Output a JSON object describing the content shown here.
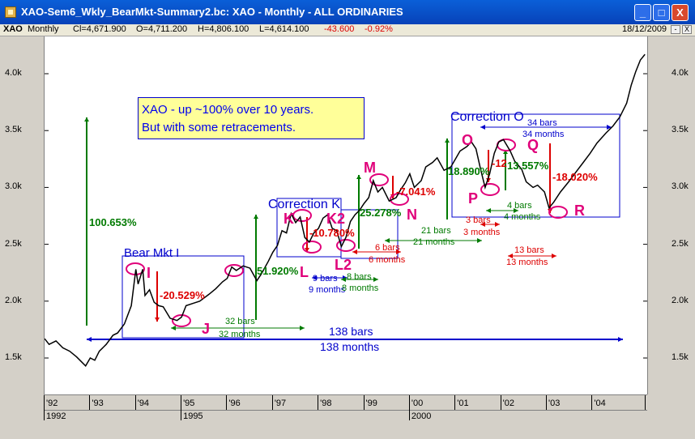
{
  "window": {
    "title": "XAO-Sem6_Wkly_BearMkt-Summary2.bc: XAO - Monthly - ALL ORDINARIES",
    "minimize": "_",
    "maximize": "□",
    "close": "X"
  },
  "info": {
    "symbol": "XAO",
    "period": "Monthly",
    "close": "Cl=4,671.900",
    "open": "O=4,711.200",
    "high": "H=4,806.100",
    "low": "L=4,614.100",
    "change": "-43.600",
    "change_pct": "-0.92%",
    "date": "18/12/2009",
    "btn1": "-",
    "btn2": "X"
  },
  "note": {
    "line1": "XAO - up ~100% over 10 years.",
    "line2": "But with some retracements."
  },
  "colors": {
    "price": "#000000",
    "green": "#007a00",
    "red": "#dd0000",
    "blue": "#0000cc",
    "magenta": "#e0007a"
  },
  "chart_data": {
    "type": "line",
    "title": "",
    "y_ticks": [
      "4.0k",
      "3.5k",
      "3.0k",
      "2.5k",
      "2.0k",
      "1.5k"
    ],
    "x_ticks": [
      "'92",
      "'93",
      "'94",
      "'95",
      "'96",
      "'97",
      "'98",
      "'99",
      "'00",
      "'01",
      "'02",
      "'03",
      "'04"
    ],
    "x_years": [
      "1992",
      "1995",
      "2000"
    ],
    "ylim": [
      1300,
      4300
    ],
    "series": [
      {
        "points": [
          [
            1992.0,
            1670
          ],
          [
            1992.1,
            1620
          ],
          [
            1992.25,
            1650
          ],
          [
            1992.4,
            1590
          ],
          [
            1992.55,
            1560
          ],
          [
            1992.7,
            1510
          ],
          [
            1992.8,
            1470
          ],
          [
            1992.9,
            1430
          ],
          [
            1993.0,
            1500
          ],
          [
            1993.1,
            1480
          ],
          [
            1993.2,
            1560
          ],
          [
            1993.35,
            1620
          ],
          [
            1993.5,
            1700
          ],
          [
            1993.6,
            1720
          ],
          [
            1993.75,
            1800
          ],
          [
            1993.9,
            1960
          ],
          [
            1994.0,
            2280
          ],
          [
            1994.05,
            2150
          ],
          [
            1994.15,
            2280
          ],
          [
            1994.2,
            2050
          ],
          [
            1994.3,
            2100
          ],
          [
            1994.4,
            1990
          ],
          [
            1994.5,
            1960
          ],
          [
            1994.6,
            1950
          ],
          [
            1994.75,
            1850
          ],
          [
            1994.9,
            1830
          ],
          [
            1995.0,
            1860
          ],
          [
            1995.1,
            1960
          ],
          [
            1995.25,
            1980
          ],
          [
            1995.4,
            2000
          ],
          [
            1995.6,
            2060
          ],
          [
            1995.75,
            2110
          ],
          [
            1995.9,
            2170
          ],
          [
            1996.0,
            2200
          ],
          [
            1996.1,
            2300
          ],
          [
            1996.2,
            2270
          ],
          [
            1996.35,
            2310
          ],
          [
            1996.5,
            2290
          ],
          [
            1996.65,
            2180
          ],
          [
            1996.75,
            2240
          ],
          [
            1996.9,
            2350
          ],
          [
            1997.0,
            2430
          ],
          [
            1997.1,
            2490
          ],
          [
            1997.2,
            2620
          ],
          [
            1997.3,
            2600
          ],
          [
            1997.4,
            2770
          ],
          [
            1997.5,
            2690
          ],
          [
            1997.6,
            2740
          ],
          [
            1997.7,
            2560
          ],
          [
            1997.8,
            2520
          ],
          [
            1997.9,
            2600
          ],
          [
            1998.0,
            2640
          ],
          [
            1998.1,
            2730
          ],
          [
            1998.2,
            2760
          ],
          [
            1998.3,
            2640
          ],
          [
            1998.4,
            2620
          ],
          [
            1998.5,
            2480
          ],
          [
            1998.6,
            2560
          ],
          [
            1998.7,
            2700
          ],
          [
            1998.8,
            2760
          ],
          [
            1998.9,
            2800
          ],
          [
            1999.0,
            2860
          ],
          [
            1999.1,
            2910
          ],
          [
            1999.2,
            3060
          ],
          [
            1999.3,
            2960
          ],
          [
            1999.4,
            3000
          ],
          [
            1999.55,
            2880
          ],
          [
            1999.7,
            2910
          ],
          [
            1999.8,
            2980
          ],
          [
            1999.9,
            3040
          ],
          [
            2000.0,
            3120
          ],
          [
            2000.1,
            3000
          ],
          [
            2000.25,
            3060
          ],
          [
            2000.35,
            3180
          ],
          [
            2000.5,
            3220
          ],
          [
            2000.6,
            3260
          ],
          [
            2000.75,
            3150
          ],
          [
            2000.9,
            3180
          ],
          [
            2001.0,
            3250
          ],
          [
            2001.1,
            3320
          ],
          [
            2001.25,
            3360
          ],
          [
            2001.35,
            3400
          ],
          [
            2001.45,
            3340
          ],
          [
            2001.55,
            3160
          ],
          [
            2001.65,
            3000
          ],
          [
            2001.75,
            3120
          ],
          [
            2001.85,
            3300
          ],
          [
            2001.95,
            3400
          ],
          [
            2002.05,
            3420
          ],
          [
            2002.2,
            3320
          ],
          [
            2002.3,
            3230
          ],
          [
            2002.45,
            3160
          ],
          [
            2002.55,
            3050
          ],
          [
            2002.7,
            3000
          ],
          [
            2002.8,
            3020
          ],
          [
            2002.95,
            2960
          ],
          [
            2003.05,
            2820
          ],
          [
            2003.15,
            2870
          ],
          [
            2003.3,
            2960
          ],
          [
            2003.5,
            3060
          ],
          [
            2003.65,
            3140
          ],
          [
            2003.8,
            3220
          ],
          [
            2003.95,
            3300
          ],
          [
            2004.1,
            3390
          ],
          [
            2004.3,
            3480
          ],
          [
            2004.45,
            3540
          ],
          [
            2004.6,
            3620
          ],
          [
            2004.75,
            3740
          ],
          [
            2004.85,
            3900
          ],
          [
            2004.95,
            4020
          ],
          [
            2005.05,
            4120
          ],
          [
            2005.15,
            4170
          ]
        ]
      }
    ],
    "annotations": [
      {
        "text": "Bear Mkt I",
        "color": "blue"
      },
      {
        "text": "Correction K",
        "color": "blue"
      },
      {
        "text": "Correction O",
        "color": "blue"
      },
      {
        "text": "100.653%",
        "color": "green"
      },
      {
        "text": "51.920%",
        "color": "green"
      },
      {
        "text": "25.278%",
        "color": "green"
      },
      {
        "text": "18.890%",
        "color": "green"
      },
      {
        "text": "13.557%",
        "color": "green"
      },
      {
        "text": "-20.529%",
        "color": "red"
      },
      {
        "text": "-10.780%",
        "color": "red"
      },
      {
        "text": "-7.041%",
        "color": "red"
      },
      {
        "text": "-12",
        "color": "red"
      },
      {
        "text": "-18.020%",
        "color": "red"
      },
      {
        "text": "I",
        "color": "magenta"
      },
      {
        "text": "J",
        "color": "magenta"
      },
      {
        "text": "K",
        "color": "magenta"
      },
      {
        "text": "K2",
        "color": "magenta"
      },
      {
        "text": "L",
        "color": "magenta"
      },
      {
        "text": "L2",
        "color": "magenta"
      },
      {
        "text": "M",
        "color": "magenta"
      },
      {
        "text": "N",
        "color": "magenta"
      },
      {
        "text": "O",
        "color": "magenta"
      },
      {
        "text": "P",
        "color": "magenta"
      },
      {
        "text": "Q",
        "color": "magenta"
      },
      {
        "text": "R",
        "color": "magenta"
      },
      {
        "text": "138 bars",
        "color": "blue"
      },
      {
        "text": "138 months",
        "color": "blue"
      },
      {
        "text": "32 bars",
        "color": "green"
      },
      {
        "text": "32 months",
        "color": "green"
      },
      {
        "text": "9 bars",
        "color": "blue"
      },
      {
        "text": "9 months",
        "color": "blue"
      },
      {
        "text": "8 bars",
        "color": "green"
      },
      {
        "text": "8 months",
        "color": "green"
      },
      {
        "text": "6 bars",
        "color": "red"
      },
      {
        "text": "6 months",
        "color": "red"
      },
      {
        "text": "21 bars",
        "color": "green"
      },
      {
        "text": "21 months",
        "color": "green"
      },
      {
        "text": "3 bars",
        "color": "red"
      },
      {
        "text": "3 months",
        "color": "red"
      },
      {
        "text": "4 bars",
        "color": "green"
      },
      {
        "text": "4 months",
        "color": "green"
      },
      {
        "text": "13 bars",
        "color": "red"
      },
      {
        "text": "13 months",
        "color": "red"
      },
      {
        "text": "34 bars",
        "color": "blue"
      },
      {
        "text": "34 months",
        "color": "blue"
      }
    ]
  }
}
